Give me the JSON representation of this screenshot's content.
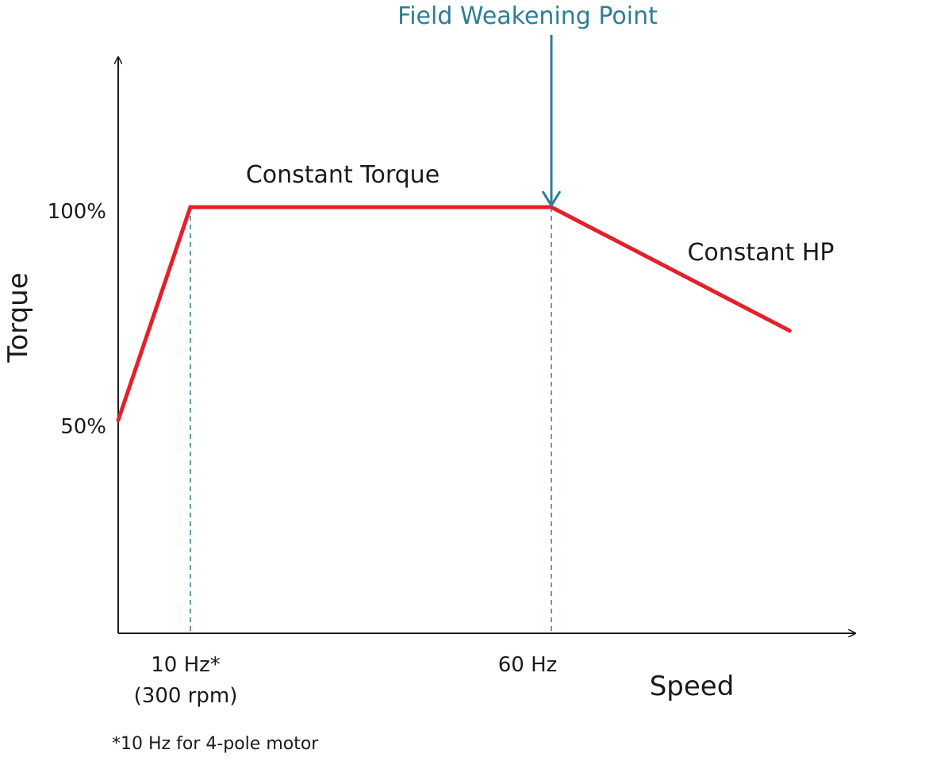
{
  "chart_data": {
    "type": "line",
    "title": "",
    "xlabel": "Speed",
    "ylabel": "Torque",
    "x_ticks": [
      {
        "x": 10,
        "label": "10 Hz*",
        "sublabel": "(300 rpm)"
      },
      {
        "x": 60,
        "label": "60 Hz",
        "sublabel": ""
      }
    ],
    "y_ticks": [
      {
        "y": 50,
        "label": "50%"
      },
      {
        "y": 100,
        "label": "100%"
      }
    ],
    "xlim": [
      0,
      95
    ],
    "ylim": [
      0,
      150
    ],
    "grid": false,
    "series": [
      {
        "color": "#e3202b",
        "x": [
          0,
          10,
          60,
          93
        ],
        "y": [
          50,
          100,
          100,
          71
        ]
      }
    ],
    "annotations": {
      "constant_torque": "Constant Torque",
      "constant_hp": "Constant HP",
      "field_weakening": "Field Weakening Point"
    },
    "footnote": "*10 Hz for 4-pole motor",
    "colors": {
      "curve": "#e3202b",
      "guide": "#2e7d93",
      "axis": "#1a1a1a"
    }
  }
}
